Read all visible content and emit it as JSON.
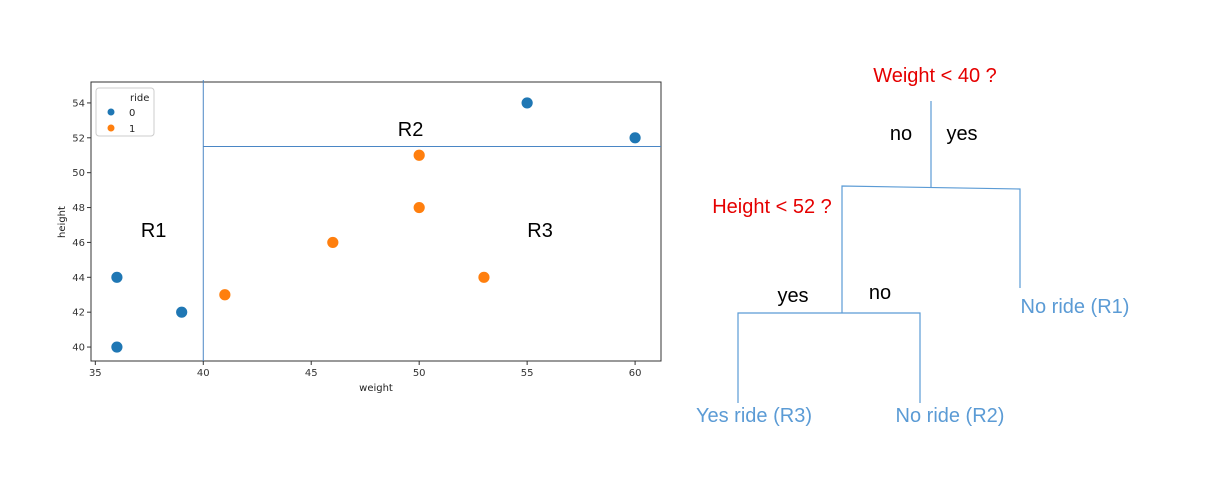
{
  "chart_data": {
    "type": "scatter",
    "title": "",
    "xlabel": "weight",
    "ylabel": "height",
    "xlim": [
      34.8,
      61.2
    ],
    "ylim": [
      39.2,
      55.2
    ],
    "x_ticks": [
      35,
      40,
      45,
      50,
      55,
      60
    ],
    "y_ticks": [
      40,
      42,
      44,
      46,
      48,
      50,
      52,
      54
    ],
    "grid": false,
    "legend": {
      "title": "ride",
      "placement": "top-left"
    },
    "series": [
      {
        "name": "0",
        "color": "#1f77b4",
        "points": [
          {
            "x": 36,
            "y": 40
          },
          {
            "x": 36,
            "y": 44
          },
          {
            "x": 39,
            "y": 42
          },
          {
            "x": 55,
            "y": 54
          },
          {
            "x": 60,
            "y": 52
          }
        ]
      },
      {
        "name": "1",
        "color": "#ff7f0e",
        "points": [
          {
            "x": 41,
            "y": 43
          },
          {
            "x": 46,
            "y": 46
          },
          {
            "x": 50,
            "y": 48
          },
          {
            "x": 50,
            "y": 51
          },
          {
            "x": 53,
            "y": 44
          }
        ]
      }
    ],
    "split_lines": [
      {
        "orientation": "vertical",
        "value": 40
      },
      {
        "orientation": "horizontal",
        "value": 51.5,
        "from": 40
      }
    ],
    "region_labels": [
      {
        "text": "R1",
        "x": 37.7,
        "y": 46.7
      },
      {
        "text": "R2",
        "x": 49.6,
        "y": 52.5
      },
      {
        "text": "R3",
        "x": 55.6,
        "y": 46.7
      }
    ]
  },
  "tree": {
    "root_question": "Weight < 40 ?",
    "root_no_label": "no",
    "root_yes_label": "yes",
    "second_question": "Height < 52 ?",
    "second_yes_label": "yes",
    "second_no_label": "no",
    "leaf_r1": "No ride (R1)",
    "leaf_r3": "Yes ride (R3)",
    "leaf_r2": "No ride (R2)",
    "line_color": "#5b9bd5"
  }
}
